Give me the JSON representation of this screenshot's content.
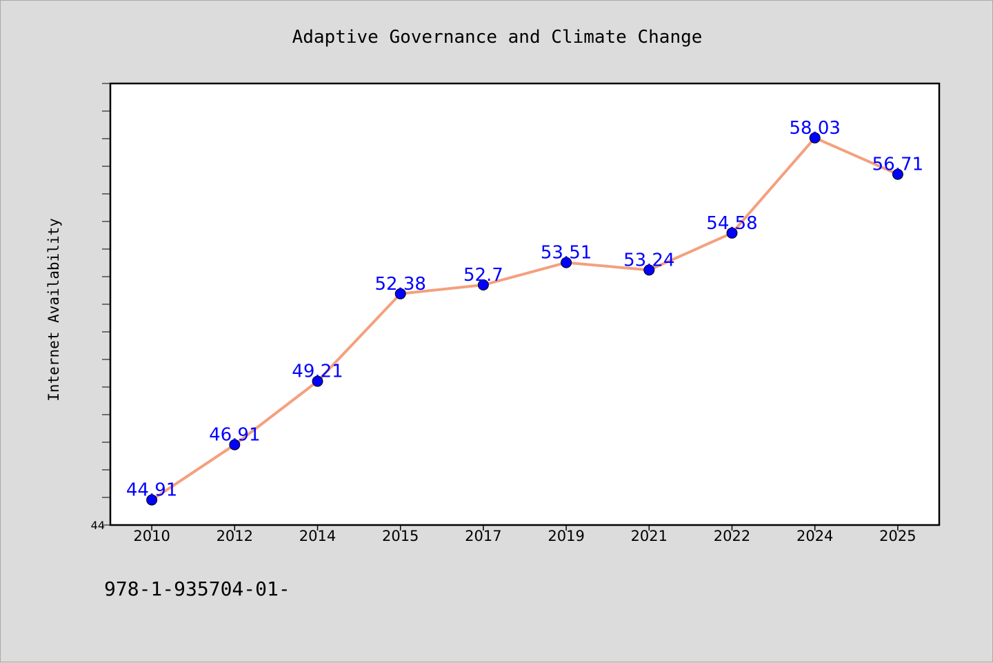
{
  "chart_data": {
    "type": "line",
    "title": "Adaptive Governance and Climate Change",
    "xlabel": "",
    "ylabel": "Internet Availability",
    "categories": [
      "2010",
      "2012",
      "2014",
      "2015",
      "2017",
      "2019",
      "2021",
      "2022",
      "2024",
      "2025"
    ],
    "values": [
      44.91,
      46.91,
      49.21,
      52.38,
      52.7,
      53.51,
      53.24,
      54.58,
      58.03,
      56.71
    ],
    "data_labels": [
      "44.91",
      "46.91",
      "49.21",
      "52.38",
      "52.7",
      "53.51",
      "53.24",
      "54.58",
      "58.03",
      "56.71"
    ],
    "ylim": [
      44,
      60
    ],
    "y_tick_labels": [
      "44"
    ],
    "grid": false,
    "legend": "none",
    "colors": {
      "line": "#f4a07e",
      "marker": "#0000ff",
      "label": "#0000ff",
      "background": "#dcdcdc",
      "plot_background": "#ffffff"
    }
  },
  "footer_text": "978-1-935704-01-"
}
